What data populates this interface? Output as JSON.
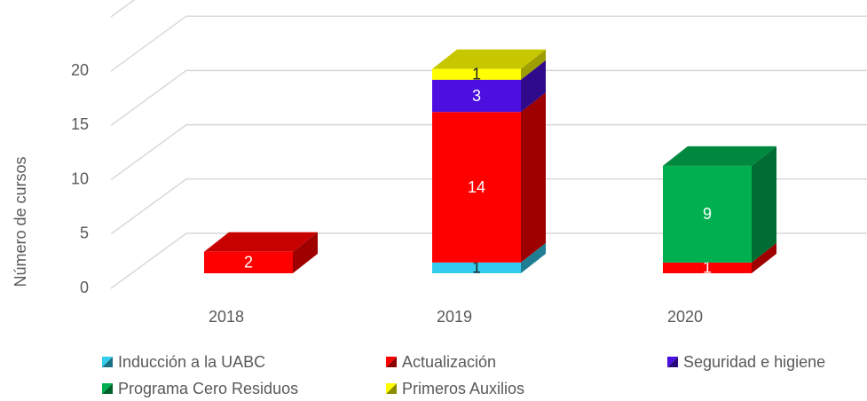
{
  "chart_data": {
    "type": "bar3d_stacked",
    "y_axis_label": "Número de cursos",
    "categories": [
      "2018",
      "2019",
      "2020"
    ],
    "series": [
      {
        "name": "Inducción a la UABC",
        "color": "#33ccee",
        "values": [
          null,
          1,
          null
        ]
      },
      {
        "name": "Actualización",
        "color": "#ff0000",
        "values": [
          2,
          14,
          1
        ]
      },
      {
        "name": "Seguridad e higiene",
        "color": "#4b10e0",
        "values": [
          null,
          3,
          null
        ]
      },
      {
        "name": "Programa Cero Residuos",
        "color": "#00b050",
        "values": [
          null,
          null,
          9
        ]
      },
      {
        "name": "Primeros Auxilios",
        "color": "#ffff00",
        "values": [
          null,
          1,
          null
        ]
      }
    ],
    "ylim": [
      0,
      25
    ],
    "yticks": [
      0,
      5,
      10,
      15,
      20
    ],
    "grid": true
  }
}
